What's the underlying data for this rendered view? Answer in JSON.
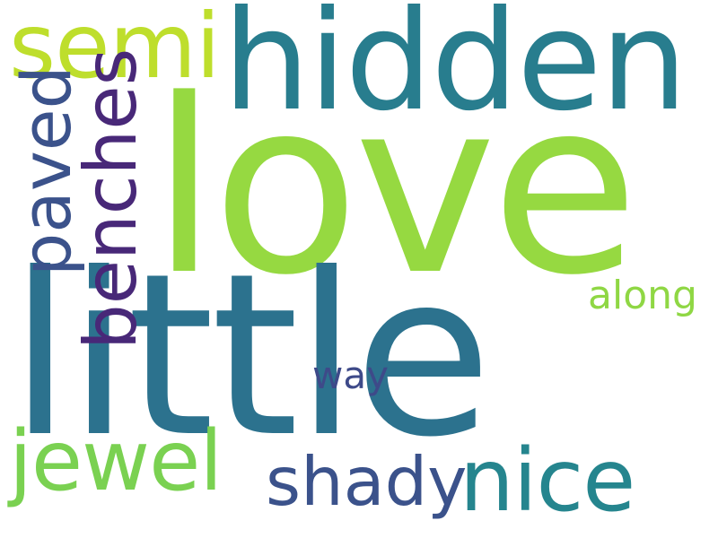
{
  "words": [
    {
      "key": "love",
      "text": "love",
      "color": "#96d941"
    },
    {
      "key": "little",
      "text": "little",
      "color": "#2c728e"
    },
    {
      "key": "hidden",
      "text": "hidden",
      "color": "#287d8e"
    },
    {
      "key": "semi",
      "text": "semi",
      "color": "#bede2c"
    },
    {
      "key": "benches",
      "text": "benches",
      "color": "#482878"
    },
    {
      "key": "paved",
      "text": "paved",
      "color": "#3b528b"
    },
    {
      "key": "jewel",
      "text": "jewel",
      "color": "#7ad151"
    },
    {
      "key": "shady",
      "text": "shady",
      "color": "#3b528b"
    },
    {
      "key": "nice",
      "text": "nice",
      "color": "#25858e"
    },
    {
      "key": "along",
      "text": "along",
      "color": "#8fd744"
    },
    {
      "key": "way",
      "text": "way",
      "color": "#3e4a89"
    }
  ],
  "background_color": "#ffffff"
}
